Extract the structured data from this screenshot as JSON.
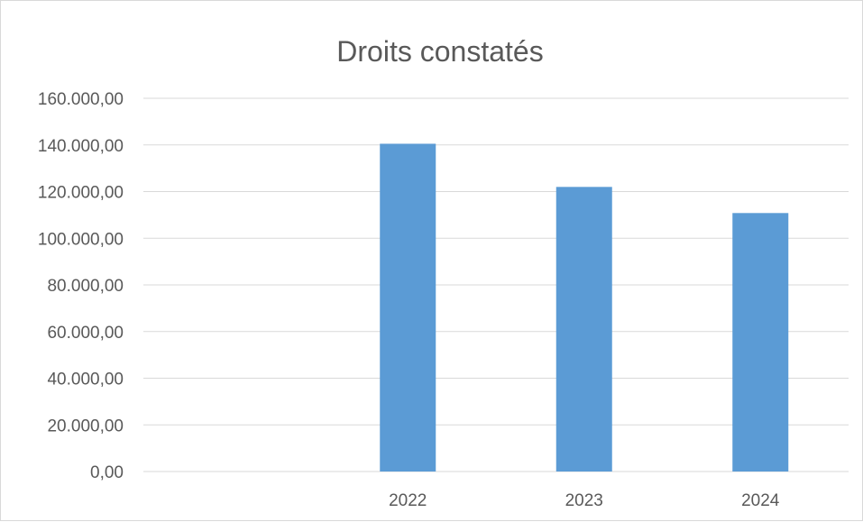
{
  "chart_data": {
    "type": "bar",
    "title": "Droits constatés",
    "xlabel": "",
    "ylabel": "",
    "categories": [
      "",
      "2022",
      "2023",
      "2024"
    ],
    "series": [
      {
        "values": [
          0,
          140500,
          122000,
          110800
        ]
      }
    ],
    "ylim": [
      0,
      160000
    ],
    "yticks": [
      "0,00",
      "20.000,00",
      "40.000,00",
      "60.000,00",
      "80.000,00",
      "100.000,00",
      "120.000,00",
      "140.000,00",
      "160.000,00"
    ],
    "grid": true,
    "legend": "none",
    "colors": {
      "bar": "#5b9bd5",
      "grid": "#d9d9d9",
      "text": "#595959"
    }
  }
}
